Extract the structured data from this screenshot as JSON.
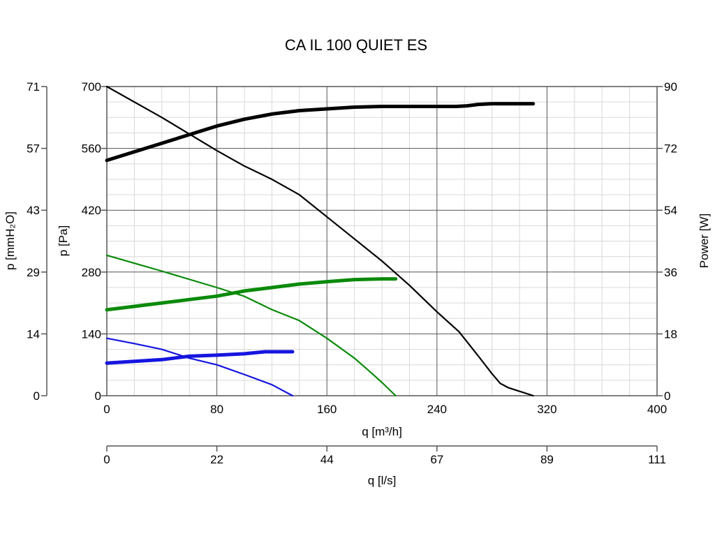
{
  "chart_data": {
    "type": "line",
    "title": "CA IL 100 QUIET ES",
    "xlabel": "q [m³/h]",
    "x2label": "q [l/s]",
    "ylabel": "p [Pa]",
    "y2label": "p [mmH₂O]",
    "y3label": "Power [W]",
    "xlim": [
      0,
      400
    ],
    "ylim": [
      0,
      700
    ],
    "y_power_lim": [
      0,
      90
    ],
    "grid": true,
    "x_ticks": [
      "0",
      "80",
      "160",
      "240",
      "320",
      "400"
    ],
    "x2_ticks": [
      "0",
      "22",
      "44",
      "67",
      "89",
      "111"
    ],
    "y_ticks": [
      "0",
      "140",
      "280",
      "420",
      "560",
      "700"
    ],
    "y_mm_ticks": [
      "0",
      "14",
      "29",
      "43",
      "57",
      "71"
    ],
    "y_power_ticks": [
      "0",
      "18",
      "36",
      "54",
      "72",
      "90"
    ],
    "colors": {
      "high": "#000000",
      "medium": "#0a8a0a",
      "low": "#1515e0"
    },
    "series": [
      {
        "color": "high",
        "axis": "pressure",
        "x": [
          0,
          40,
          80,
          100,
          120,
          140,
          160,
          180,
          200,
          220,
          240,
          256,
          270,
          280,
          286,
          292,
          310
        ],
        "y": [
          700,
          630,
          555,
          520,
          490,
          455,
          405,
          355,
          305,
          250,
          190,
          145,
          90,
          50,
          28,
          18,
          0
        ]
      },
      {
        "color": "high",
        "axis": "power",
        "x": [
          0,
          20,
          40,
          60,
          80,
          100,
          120,
          140,
          160,
          180,
          200,
          220,
          240,
          254,
          262,
          270,
          280,
          310
        ],
        "y": [
          68.5,
          71,
          73.5,
          76,
          78.5,
          80.5,
          82,
          83,
          83.5,
          84,
          84.2,
          84.2,
          84.2,
          84.2,
          84.4,
          84.8,
          85,
          85
        ]
      },
      {
        "color": "medium",
        "axis": "pressure",
        "x": [
          0,
          40,
          80,
          100,
          120,
          140,
          160,
          180,
          190,
          200,
          210
        ],
        "y": [
          318,
          282,
          245,
          225,
          195,
          170,
          130,
          85,
          58,
          30,
          0
        ]
      },
      {
        "color": "medium",
        "axis": "power",
        "x": [
          0,
          20,
          40,
          60,
          80,
          100,
          120,
          140,
          160,
          180,
          200,
          210
        ],
        "y": [
          25,
          26,
          27,
          28,
          29,
          30.5,
          31.5,
          32.5,
          33.2,
          33.8,
          34,
          34
        ]
      },
      {
        "color": "low",
        "axis": "pressure",
        "x": [
          0,
          20,
          40,
          60,
          80,
          100,
          120,
          135
        ],
        "y": [
          130,
          118,
          105,
          85,
          70,
          48,
          25,
          0
        ]
      },
      {
        "color": "low",
        "axis": "power",
        "x": [
          0,
          20,
          40,
          60,
          80,
          100,
          115,
          135
        ],
        "y": [
          9.5,
          10,
          10.5,
          11.5,
          11.8,
          12.2,
          12.8,
          12.8
        ]
      }
    ]
  }
}
